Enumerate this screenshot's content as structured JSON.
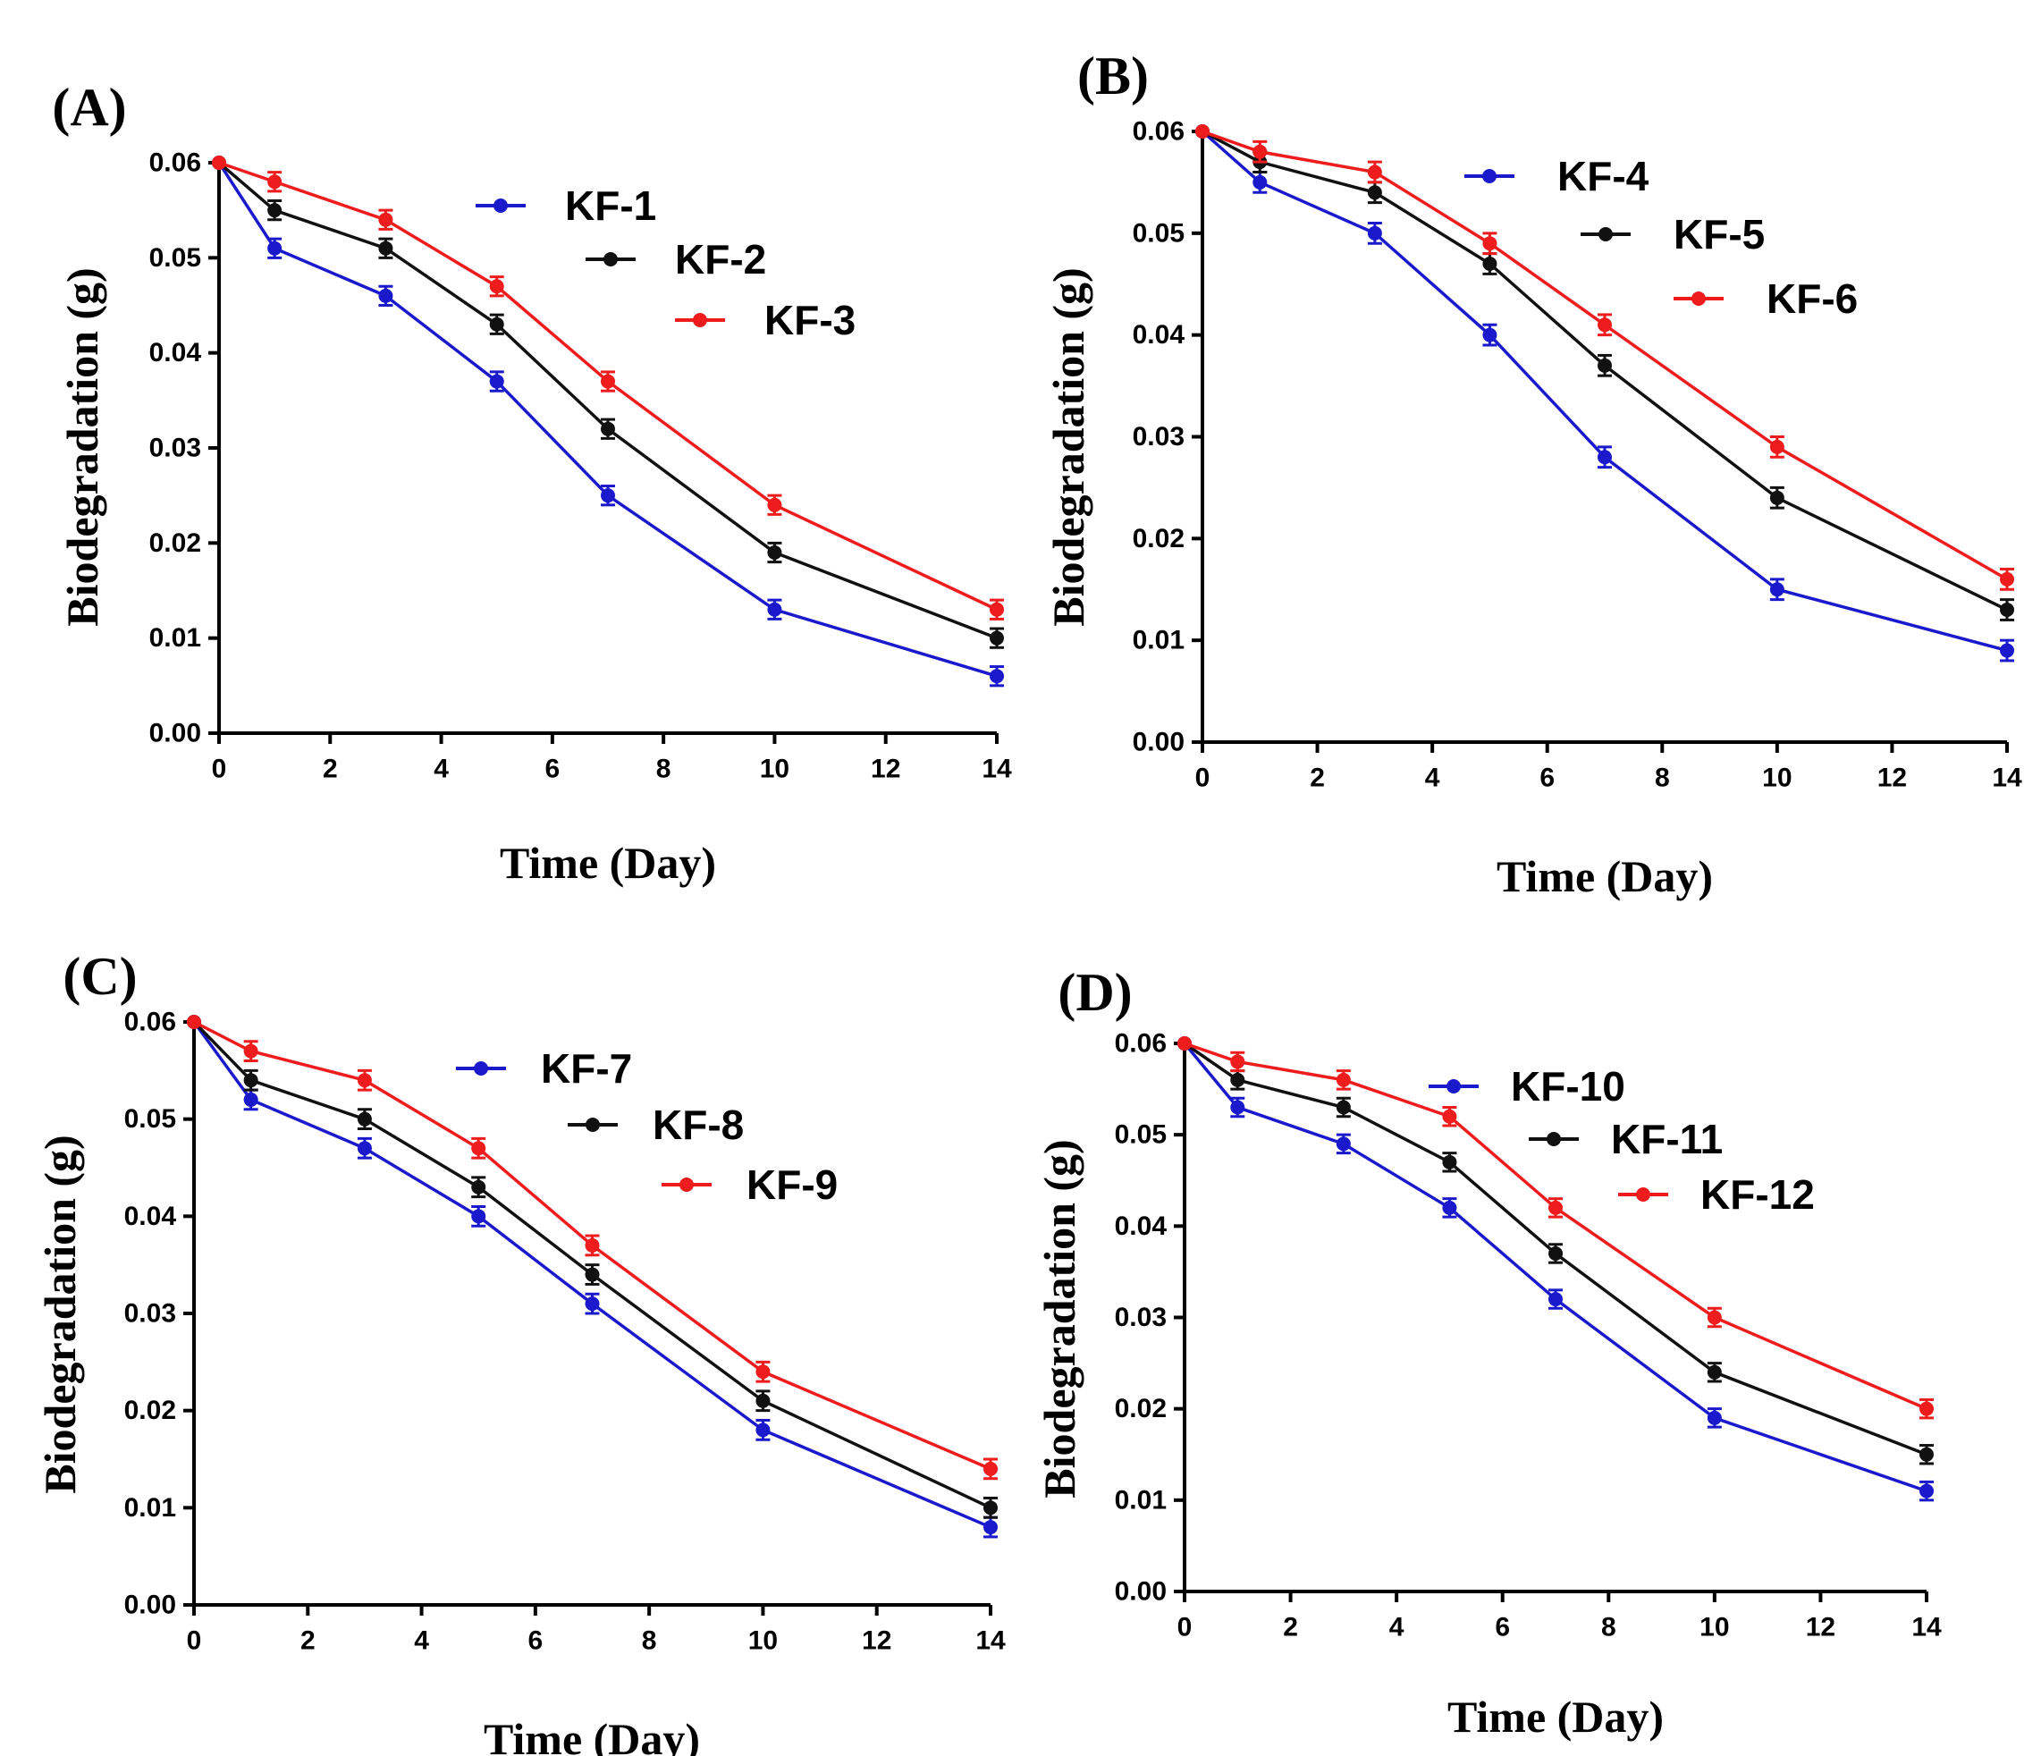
{
  "chart_data": [
    {
      "type": "line",
      "panel_label": "(A)",
      "xlabel": "Time (Day)",
      "ylabel": "Biodegradation (g)",
      "xlim": [
        0,
        14
      ],
      "ylim": [
        0,
        0.06
      ],
      "xticks": [
        0,
        2,
        4,
        6,
        8,
        10,
        12,
        14
      ],
      "xtick_labels": [
        "0",
        "2",
        "4",
        "6",
        "8",
        "10",
        "12",
        "14"
      ],
      "yticks": [
        0,
        0.01,
        0.02,
        0.03,
        0.04,
        0.05,
        0.06
      ],
      "ytick_labels": [
        "0.00",
        "0.01",
        "0.02",
        "0.03",
        "0.04",
        "0.05",
        "0.06"
      ],
      "x": [
        0,
        1,
        3,
        5,
        7,
        10,
        14
      ],
      "error": 0.001,
      "legend_position": "top-right",
      "series": [
        {
          "name": "KF-1",
          "color": "#1a1acc",
          "values": [
            0.06,
            0.051,
            0.046,
            0.037,
            0.025,
            0.013,
            0.006
          ]
        },
        {
          "name": "KF-2",
          "color": "#111111",
          "values": [
            0.06,
            0.055,
            0.051,
            0.043,
            0.032,
            0.019,
            0.01
          ]
        },
        {
          "name": "KF-3",
          "color": "#ee1c1c",
          "values": [
            0.06,
            0.058,
            0.054,
            0.047,
            0.037,
            0.024,
            0.013
          ]
        }
      ]
    },
    {
      "type": "line",
      "panel_label": "(B)",
      "xlabel": "Time (Day)",
      "ylabel": "Biodegradation (g)",
      "xlim": [
        0,
        14
      ],
      "ylim": [
        0,
        0.06
      ],
      "xticks": [
        0,
        2,
        4,
        6,
        8,
        10,
        12,
        14
      ],
      "xtick_labels": [
        "0",
        "2",
        "4",
        "6",
        "8",
        "10",
        "12",
        "14"
      ],
      "yticks": [
        0,
        0.01,
        0.02,
        0.03,
        0.04,
        0.05,
        0.06
      ],
      "ytick_labels": [
        "0.00",
        "0.01",
        "0.02",
        "0.03",
        "0.04",
        "0.05",
        "0.06"
      ],
      "x": [
        0,
        1,
        3,
        5,
        7,
        10,
        14
      ],
      "error": 0.001,
      "legend_position": "top-right",
      "series": [
        {
          "name": "KF-4",
          "color": "#1a1acc",
          "values": [
            0.06,
            0.055,
            0.05,
            0.04,
            0.028,
            0.015,
            0.009
          ]
        },
        {
          "name": "KF-5",
          "color": "#111111",
          "values": [
            0.06,
            0.057,
            0.054,
            0.047,
            0.037,
            0.024,
            0.013
          ]
        },
        {
          "name": "KF-6",
          "color": "#ee1c1c",
          "values": [
            0.06,
            0.058,
            0.056,
            0.049,
            0.041,
            0.029,
            0.016
          ]
        }
      ]
    },
    {
      "type": "line",
      "panel_label": "(C)",
      "xlabel": "Time (Day)",
      "ylabel": "Biodegradation (g)",
      "xlim": [
        0,
        14
      ],
      "ylim": [
        0,
        0.06
      ],
      "xticks": [
        0,
        2,
        4,
        6,
        8,
        10,
        12,
        14
      ],
      "xtick_labels": [
        "0",
        "2",
        "4",
        "6",
        "8",
        "10",
        "12",
        "14"
      ],
      "yticks": [
        0,
        0.01,
        0.02,
        0.03,
        0.04,
        0.05,
        0.06
      ],
      "ytick_labels": [
        "0.00",
        "0.01",
        "0.02",
        "0.03",
        "0.04",
        "0.05",
        "0.06"
      ],
      "x": [
        0,
        1,
        3,
        5,
        7,
        10,
        14
      ],
      "error": 0.001,
      "legend_position": "top-right",
      "series": [
        {
          "name": "KF-7",
          "color": "#1a1acc",
          "values": [
            0.06,
            0.052,
            0.047,
            0.04,
            0.031,
            0.018,
            0.008
          ]
        },
        {
          "name": "KF-8",
          "color": "#111111",
          "values": [
            0.06,
            0.054,
            0.05,
            0.043,
            0.034,
            0.021,
            0.01
          ]
        },
        {
          "name": "KF-9",
          "color": "#ee1c1c",
          "values": [
            0.06,
            0.057,
            0.054,
            0.047,
            0.037,
            0.024,
            0.014
          ]
        }
      ]
    },
    {
      "type": "line",
      "panel_label": "(D)",
      "xlabel": "Time (Day)",
      "ylabel": "Biodegradation (g)",
      "xlim": [
        0,
        14
      ],
      "ylim": [
        0,
        0.06
      ],
      "xticks": [
        0,
        2,
        4,
        6,
        8,
        10,
        12,
        14
      ],
      "xtick_labels": [
        "0",
        "2",
        "4",
        "6",
        "8",
        "10",
        "12",
        "14"
      ],
      "yticks": [
        0,
        0.01,
        0.02,
        0.03,
        0.04,
        0.05,
        0.06
      ],
      "ytick_labels": [
        "0.00",
        "0.01",
        "0.02",
        "0.03",
        "0.04",
        "0.05",
        "0.06"
      ],
      "x": [
        0,
        1,
        3,
        5,
        7,
        10,
        14
      ],
      "error": 0.001,
      "legend_position": "top-right",
      "series": [
        {
          "name": "KF-10",
          "color": "#1a1acc",
          "values": [
            0.06,
            0.053,
            0.049,
            0.042,
            0.032,
            0.019,
            0.011
          ]
        },
        {
          "name": "KF-11",
          "color": "#111111",
          "values": [
            0.06,
            0.056,
            0.053,
            0.047,
            0.037,
            0.024,
            0.015
          ]
        },
        {
          "name": "KF-12",
          "color": "#ee1c1c",
          "values": [
            0.06,
            0.058,
            0.056,
            0.052,
            0.042,
            0.03,
            0.02
          ]
        }
      ]
    }
  ]
}
